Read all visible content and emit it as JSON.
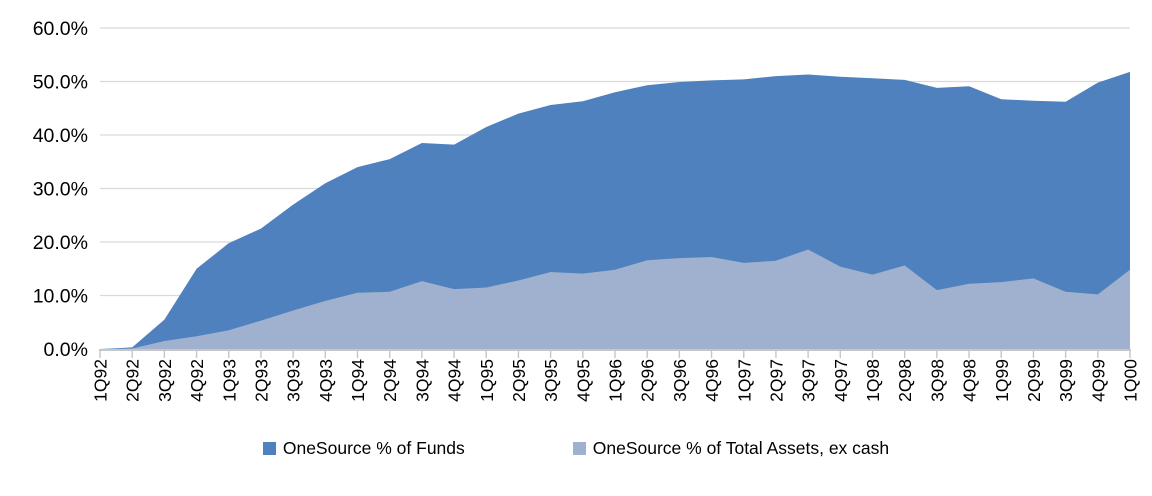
{
  "chart_data": {
    "type": "area",
    "title": "",
    "xlabel": "",
    "ylabel": "",
    "categories": [
      "1Q92",
      "2Q92",
      "3Q92",
      "4Q92",
      "1Q93",
      "2Q93",
      "3Q93",
      "4Q93",
      "1Q94",
      "2Q94",
      "3Q94",
      "4Q94",
      "1Q95",
      "2Q95",
      "3Q95",
      "4Q95",
      "1Q96",
      "2Q96",
      "3Q96",
      "4Q96",
      "1Q97",
      "2Q97",
      "3Q97",
      "4Q97",
      "1Q98",
      "2Q98",
      "3Q98",
      "4Q98",
      "1Q99",
      "2Q99",
      "3Q99",
      "4Q99",
      "1Q00"
    ],
    "series": [
      {
        "name": "OneSource % of Funds",
        "color": "#4E81BD",
        "values": [
          0.0,
          0.3,
          5.5,
          15.0,
          19.8,
          22.5,
          27.0,
          31.0,
          34.0,
          35.5,
          38.5,
          38.2,
          41.5,
          44.0,
          45.6,
          46.3,
          48.0,
          49.3,
          49.9,
          50.2,
          50.4,
          51.0,
          51.3,
          50.9,
          50.6,
          50.3,
          48.8,
          49.1,
          46.7,
          46.4,
          46.2,
          49.8,
          51.8
        ]
      },
      {
        "name": "OneSource % of Total Assets, ex cash",
        "color": "#9FB1CF",
        "values": [
          0.0,
          0.1,
          1.5,
          2.4,
          3.5,
          5.3,
          7.2,
          9.0,
          10.5,
          10.7,
          12.7,
          11.2,
          11.5,
          12.8,
          14.4,
          14.1,
          14.8,
          16.6,
          17.0,
          17.2,
          16.1,
          16.5,
          18.6,
          15.4,
          13.9,
          15.6,
          11.0,
          12.2,
          12.5,
          13.2,
          10.7,
          10.2,
          14.8
        ]
      }
    ],
    "y_axis": {
      "min": 0,
      "max": 60,
      "step": 10,
      "tick_labels": [
        "0.0%",
        "10.0%",
        "20.0%",
        "30.0%",
        "40.0%",
        "50.0%",
        "60.0%"
      ]
    },
    "layout": {
      "grid": "horizontal",
      "gridline_color": "#D9D9D9",
      "axis_color": "#C6C6C6",
      "text_color": "#000000",
      "x_label_rotation": -90,
      "legend_position": "bottom",
      "series_overlap": true
    }
  },
  "legend": {
    "items": [
      {
        "label": "OneSource % of Funds",
        "color": "#4E81BD"
      },
      {
        "label": "OneSource % of Total Assets, ex cash",
        "color": "#9FB1CF"
      }
    ]
  }
}
